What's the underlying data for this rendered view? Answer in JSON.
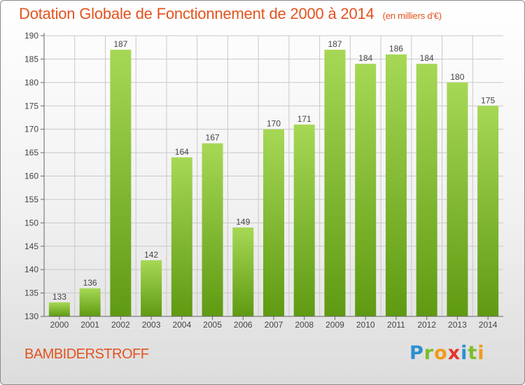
{
  "header": {
    "title": "Dotation Globale de Fonctionnement de 2000 à 2014",
    "unit": "(en milliers d'€)"
  },
  "footer": {
    "city": "BAMBIDERSTROFF",
    "logo": "Proxiti"
  },
  "colors": {
    "title": "#e2531f",
    "bar_light": "#a6d855",
    "bar_dark": "#5f9a12",
    "grid": "#c8c8c8"
  },
  "chart_data": {
    "type": "bar",
    "categories": [
      "2000",
      "2001",
      "2002",
      "2003",
      "2004",
      "2005",
      "2006",
      "2007",
      "2008",
      "2009",
      "2010",
      "2011",
      "2012",
      "2013",
      "2014"
    ],
    "values": [
      133,
      136,
      187,
      142,
      164,
      167,
      149,
      170,
      171,
      187,
      184,
      186,
      184,
      180,
      175
    ],
    "title": "Dotation Globale de Fonctionnement de 2000 à 2014",
    "subtitle": "(en milliers d'€)",
    "ylim": [
      130,
      190
    ],
    "yticks": [
      130,
      135,
      140,
      145,
      150,
      155,
      160,
      165,
      170,
      175,
      180,
      185,
      190
    ],
    "grid": true,
    "data_labels": true
  }
}
